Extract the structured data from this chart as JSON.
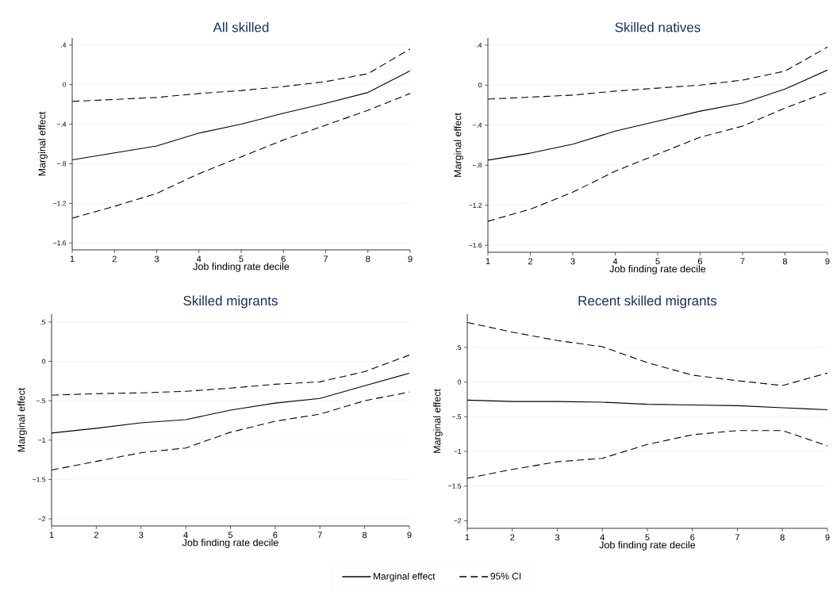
{
  "chart_data": [
    {
      "type": "line",
      "title": "All skilled",
      "xlabel": "Job finding rate decile",
      "ylabel": "Marginal effect",
      "x": [
        1,
        2,
        3,
        4,
        5,
        6,
        7,
        8,
        9
      ],
      "xlim": [
        1,
        9
      ],
      "xticks": [
        1,
        2,
        3,
        4,
        5,
        6,
        7,
        8,
        9
      ],
      "ylim": [
        -1.67,
        0.47
      ],
      "yticks": [
        {
          "value": -1.6,
          "label": "−1.6"
        },
        {
          "value": -1.2,
          "label": "−1.2"
        },
        {
          "value": -0.8,
          "label": "−.8"
        },
        {
          "value": -0.4,
          "label": "−.4"
        },
        0,
        {
          "value": 0.4,
          "label": ".4"
        }
      ],
      "grid": "y",
      "marker": "none",
      "series": [
        {
          "color": "#000000",
          "line_style": "solid",
          "values": [
            -0.76,
            -0.69,
            -0.62,
            -0.49,
            -0.4,
            -0.29,
            -0.19,
            -0.08,
            0.14
          ]
        },
        {
          "color": "#000000",
          "line_style": "dashed",
          "values": [
            -0.17,
            -0.15,
            -0.13,
            -0.09,
            -0.06,
            -0.02,
            0.03,
            0.11,
            0.36
          ]
        },
        {
          "color": "#000000",
          "line_style": "dashed",
          "values": [
            -1.35,
            -1.23,
            -1.1,
            -0.9,
            -0.73,
            -0.56,
            -0.41,
            -0.26,
            -0.09
          ]
        }
      ]
    },
    {
      "type": "line",
      "title": "Skilled natives",
      "xlabel": "Job finding rate decile",
      "ylabel": "Marginal effect",
      "x": [
        1,
        2,
        3,
        4,
        5,
        6,
        7,
        8,
        9
      ],
      "xlim": [
        1,
        9
      ],
      "xticks": [
        1,
        2,
        3,
        4,
        5,
        6,
        7,
        8,
        9
      ],
      "ylim": [
        -1.67,
        0.47
      ],
      "yticks": [
        {
          "value": -1.6,
          "label": "−1.6"
        },
        {
          "value": -1.2,
          "label": "−1.2"
        },
        {
          "value": -0.8,
          "label": "−.8"
        },
        {
          "value": -0.4,
          "label": "−.4"
        },
        0,
        {
          "value": 0.4,
          "label": ".4"
        }
      ],
      "grid": "y",
      "marker": "none",
      "series": [
        {
          "color": "#000000",
          "line_style": "solid",
          "values": [
            -0.75,
            -0.68,
            -0.59,
            -0.46,
            -0.36,
            -0.26,
            -0.18,
            -0.04,
            0.15
          ]
        },
        {
          "color": "#000000",
          "line_style": "dashed",
          "values": [
            -0.14,
            -0.12,
            -0.1,
            -0.06,
            -0.03,
            0.0,
            0.05,
            0.14,
            0.38
          ]
        },
        {
          "color": "#000000",
          "line_style": "dashed",
          "values": [
            -1.36,
            -1.24,
            -1.07,
            -0.86,
            -0.69,
            -0.52,
            -0.41,
            -0.23,
            -0.07
          ]
        }
      ]
    },
    {
      "type": "line",
      "title": "Skilled migrants",
      "xlabel": "Job finding rate decile",
      "ylabel": "Marginal effect",
      "x": [
        1,
        2,
        3,
        4,
        5,
        6,
        7,
        8,
        9
      ],
      "xlim": [
        1,
        9
      ],
      "xticks": [
        1,
        2,
        3,
        4,
        5,
        6,
        7,
        8,
        9
      ],
      "ylim": [
        -2.09,
        0.6
      ],
      "yticks": [
        {
          "value": -2,
          "label": "−2"
        },
        {
          "value": -1.5,
          "label": "−1.5"
        },
        {
          "value": -1,
          "label": "−1"
        },
        {
          "value": -0.5,
          "label": "−.5"
        },
        0,
        {
          "value": 0.5,
          "label": ".5"
        }
      ],
      "grid": "y",
      "marker": "none",
      "series": [
        {
          "color": "#000000",
          "line_style": "solid",
          "values": [
            -0.91,
            -0.85,
            -0.78,
            -0.74,
            -0.62,
            -0.53,
            -0.47,
            -0.31,
            -0.15
          ]
        },
        {
          "color": "#000000",
          "line_style": "dashed",
          "values": [
            -0.43,
            -0.41,
            -0.4,
            -0.38,
            -0.34,
            -0.29,
            -0.26,
            -0.13,
            0.08
          ]
        },
        {
          "color": "#000000",
          "line_style": "dashed",
          "values": [
            -1.38,
            -1.27,
            -1.16,
            -1.1,
            -0.9,
            -0.76,
            -0.67,
            -0.5,
            -0.39
          ]
        }
      ]
    },
    {
      "type": "line",
      "title": "Recent skilled migrants",
      "xlabel": "Job finding rate decile",
      "ylabel": "Marginal effect",
      "x": [
        1,
        2,
        3,
        4,
        5,
        6,
        7,
        8,
        9
      ],
      "xlim": [
        1,
        9
      ],
      "xticks": [
        1,
        2,
        3,
        4,
        5,
        6,
        7,
        8,
        9
      ],
      "ylim": [
        -2.11,
        0.98
      ],
      "yticks": [
        {
          "value": -2,
          "label": "−2"
        },
        {
          "value": -1.5,
          "label": "−1.5"
        },
        {
          "value": -1,
          "label": "−1"
        },
        {
          "value": -0.5,
          "label": "−.5"
        },
        0,
        {
          "value": 0.5,
          "label": ".5"
        }
      ],
      "grid": "y",
      "marker": "none",
      "legend": "bottom",
      "series": [
        {
          "name": "Marginal effect",
          "color": "#000000",
          "line_style": "solid",
          "values": [
            -0.26,
            -0.28,
            -0.28,
            -0.29,
            -0.32,
            -0.33,
            -0.34,
            -0.37,
            -0.4
          ]
        },
        {
          "name": "95% CI",
          "color": "#000000",
          "line_style": "dashed",
          "values": [
            0.86,
            0.72,
            0.6,
            0.51,
            0.28,
            0.1,
            0.02,
            -0.05,
            0.13
          ]
        },
        {
          "color": "#000000",
          "line_style": "dashed",
          "values": [
            -1.39,
            -1.26,
            -1.15,
            -1.1,
            -0.9,
            -0.76,
            -0.7,
            -0.7,
            -0.92
          ]
        }
      ]
    }
  ]
}
